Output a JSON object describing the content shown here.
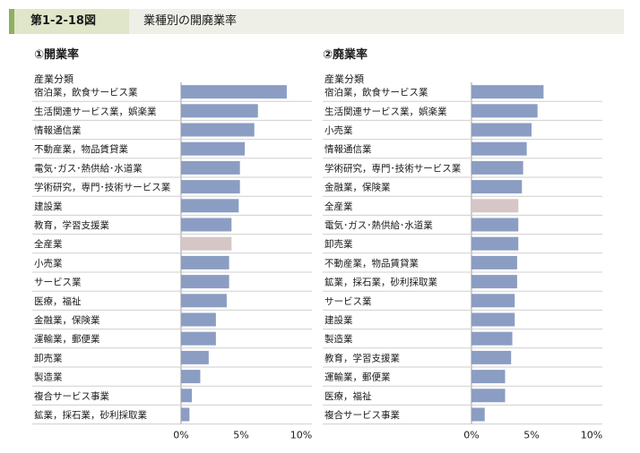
{
  "header": {
    "figure_number": "第1-2-18図",
    "title": "業種別の開廃業率"
  },
  "colors": {
    "bar": "#8b9dc3",
    "highlight": "#d6c6c6",
    "row_divider": "#cfcfcf",
    "header_bg": "#eeefe7",
    "header_accent": "#8fb060"
  },
  "chart_data": [
    {
      "type": "bar",
      "orientation": "horizontal",
      "title": "①開業率",
      "category_header": "産業分類",
      "xlim": [
        0,
        10
      ],
      "x_ticks": [
        "0%",
        "5%",
        "10%"
      ],
      "categories": [
        "宿泊業，飲食サービス業",
        "生活関連サービス業，娯楽業",
        "情報通信業",
        "不動産業，物品賃貸業",
        "電気･ガス･熱供給･水道業",
        "学術研究，専門･技術サービス業",
        "建設業",
        "教育，学習支援業",
        "全産業",
        "小売業",
        "サービス業",
        "医療，福祉",
        "金融業，保険業",
        "運輸業，郵便業",
        "卸売業",
        "製造業",
        "複合サービス事業",
        "鉱業，採石業，砂利採取業"
      ],
      "values": [
        8.8,
        6.4,
        6.1,
        5.3,
        4.9,
        4.9,
        4.8,
        4.2,
        4.2,
        4.0,
        4.0,
        3.8,
        2.9,
        2.9,
        2.3,
        1.6,
        0.9,
        0.7
      ],
      "highlight_category": "全産業"
    },
    {
      "type": "bar",
      "orientation": "horizontal",
      "title": "②廃業率",
      "category_header": "産業分類",
      "xlim": [
        0,
        10
      ],
      "x_ticks": [
        "0%",
        "5%",
        "10%"
      ],
      "categories": [
        "宿泊業，飲食サービス業",
        "生活関連サービス業，娯楽業",
        "小売業",
        "情報通信業",
        "学術研究，専門･技術サービス業",
        "金融業，保険業",
        "全産業",
        "電気･ガス･熱供給･水道業",
        "卸売業",
        "不動産業，物品賃貸業",
        "鉱業，採石業，砂利採取業",
        "サービス業",
        "建設業",
        "製造業",
        "教育，学習支援業",
        "運輸業，郵便業",
        "医療，福祉",
        "複合サービス事業"
      ],
      "values": [
        6.0,
        5.5,
        5.0,
        4.6,
        4.3,
        4.2,
        3.9,
        3.9,
        3.9,
        3.8,
        3.8,
        3.6,
        3.6,
        3.4,
        3.3,
        2.8,
        2.8,
        1.1
      ],
      "highlight_category": "全産業"
    }
  ]
}
